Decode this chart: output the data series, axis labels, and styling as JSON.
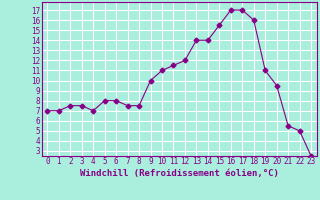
{
  "x": [
    0,
    1,
    2,
    3,
    4,
    5,
    6,
    7,
    8,
    9,
    10,
    11,
    12,
    13,
    14,
    15,
    16,
    17,
    18,
    19,
    20,
    21,
    22,
    23
  ],
  "y": [
    7,
    7,
    7.5,
    7.5,
    7,
    8,
    8,
    7.5,
    7.5,
    10,
    11,
    11.5,
    12,
    14,
    14,
    15.5,
    17,
    17,
    16,
    11,
    9.5,
    5.5,
    5,
    2.5
  ],
  "line_color": "#880088",
  "marker": "D",
  "marker_size": 2.5,
  "bg_color": "#aaeedd",
  "grid_color": "#ffffff",
  "xlabel": "Windchill (Refroidissement éolien,°C)",
  "xlabel_color": "#880088",
  "xlabel_fontsize": 6.5,
  "tick_color": "#880088",
  "tick_fontsize": 5.5,
  "yticks": [
    3,
    4,
    5,
    6,
    7,
    8,
    9,
    10,
    11,
    12,
    13,
    14,
    15,
    16,
    17
  ],
  "ylim": [
    2.5,
    17.8
  ],
  "xlim": [
    -0.5,
    23.5
  ]
}
